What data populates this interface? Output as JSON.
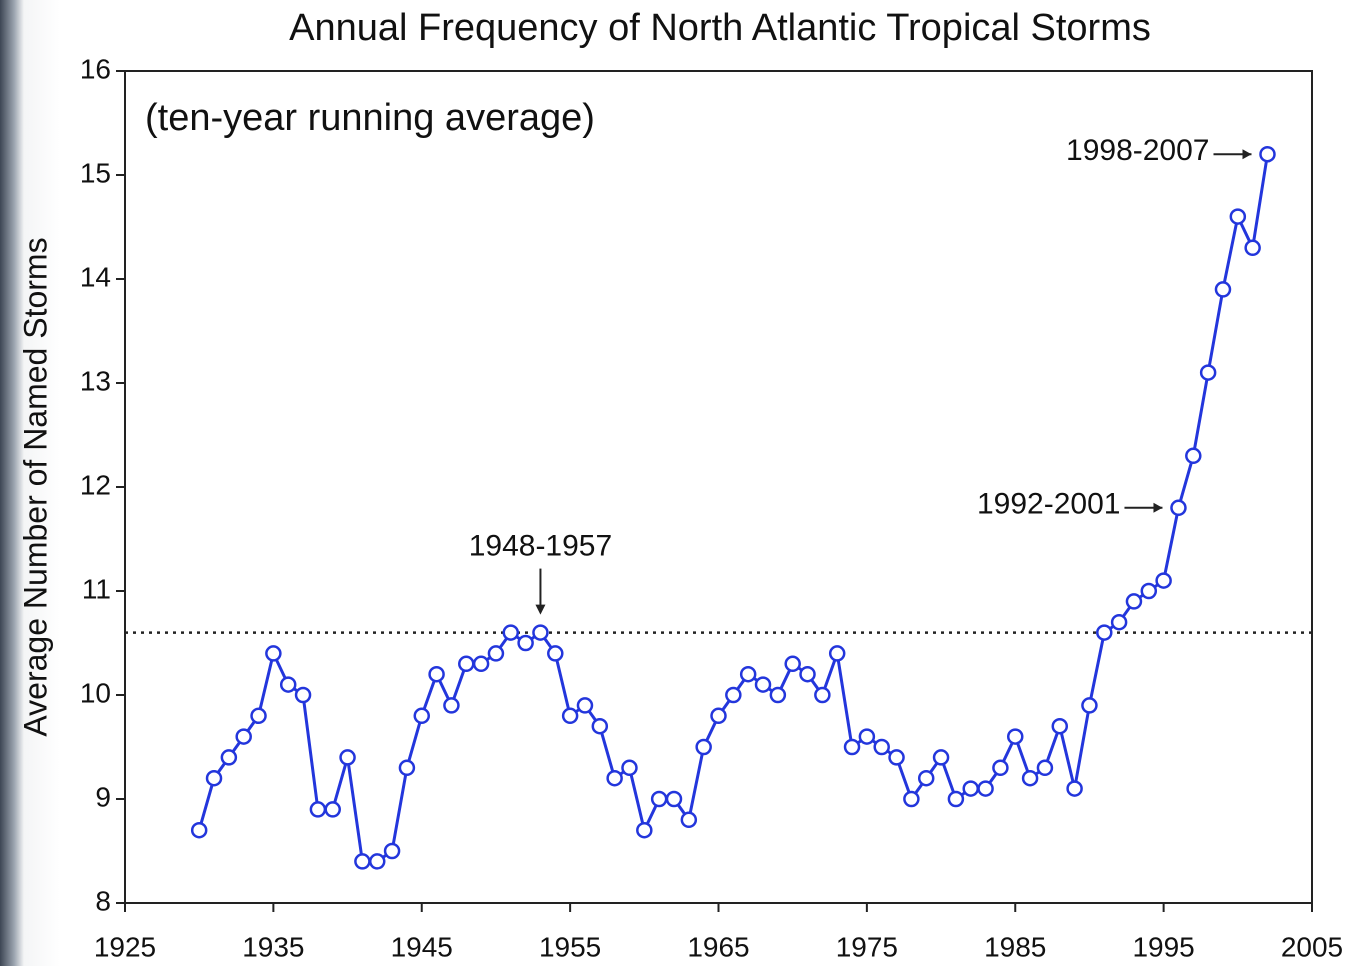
{
  "chart_data": {
    "type": "line",
    "title": "Annual Frequency of North Atlantic Tropical Storms",
    "subtitle": "(ten-year running average)",
    "y_label": "Average Number of Named Storms",
    "x": [
      1930,
      1931,
      1932,
      1933,
      1934,
      1935,
      1936,
      1937,
      1938,
      1939,
      1940,
      1941,
      1942,
      1943,
      1944,
      1945,
      1946,
      1947,
      1948,
      1949,
      1950,
      1951,
      1952,
      1953,
      1954,
      1955,
      1956,
      1957,
      1958,
      1959,
      1960,
      1961,
      1962,
      1963,
      1964,
      1965,
      1966,
      1967,
      1968,
      1969,
      1970,
      1971,
      1972,
      1973,
      1974,
      1975,
      1976,
      1977,
      1978,
      1979,
      1980,
      1981,
      1982,
      1983,
      1984,
      1985,
      1986,
      1987,
      1988,
      1989,
      1990,
      1991,
      1992,
      1993,
      1994,
      1995,
      1996,
      1997,
      1998,
      1999,
      2000,
      2001,
      2002
    ],
    "series": [
      {
        "color": "#2336dc",
        "values": [
          8.7,
          9.2,
          9.4,
          9.6,
          9.8,
          10.4,
          10.1,
          10.0,
          8.9,
          8.9,
          9.4,
          8.4,
          8.4,
          8.5,
          9.3,
          9.8,
          10.2,
          9.9,
          10.3,
          10.3,
          10.4,
          10.6,
          10.5,
          10.6,
          10.4,
          9.8,
          9.9,
          9.7,
          9.2,
          9.3,
          8.7,
          9.0,
          9.0,
          8.8,
          9.5,
          9.8,
          10.0,
          10.2,
          10.1,
          10.0,
          10.3,
          10.2,
          10.0,
          10.4,
          9.5,
          9.6,
          9.5,
          9.4,
          9.0,
          9.2,
          9.4,
          9.0,
          9.1,
          9.1,
          9.3,
          9.6,
          9.2,
          9.3,
          9.7,
          9.1,
          9.9,
          10.6,
          10.7,
          10.9,
          11.0,
          11.1,
          11.8,
          12.3,
          13.1,
          13.9,
          14.6,
          14.3,
          15.2
        ]
      }
    ],
    "reference_line": 10.6,
    "annotations": [
      {
        "text": "1948-1957",
        "x": 1953,
        "y": 10.6
      },
      {
        "text": "1992-2001",
        "x": 1996,
        "y": 11.8
      },
      {
        "text": "1998-2007",
        "x": 2002,
        "y": 15.2
      }
    ],
    "xlim": [
      1925,
      2005
    ],
    "xticks": [
      1925,
      1935,
      1945,
      1955,
      1965,
      1975,
      1985,
      1995,
      2005
    ],
    "ylim": [
      8,
      16
    ],
    "yticks": [
      8,
      9,
      10,
      11,
      12,
      13,
      14,
      15,
      16
    ]
  }
}
